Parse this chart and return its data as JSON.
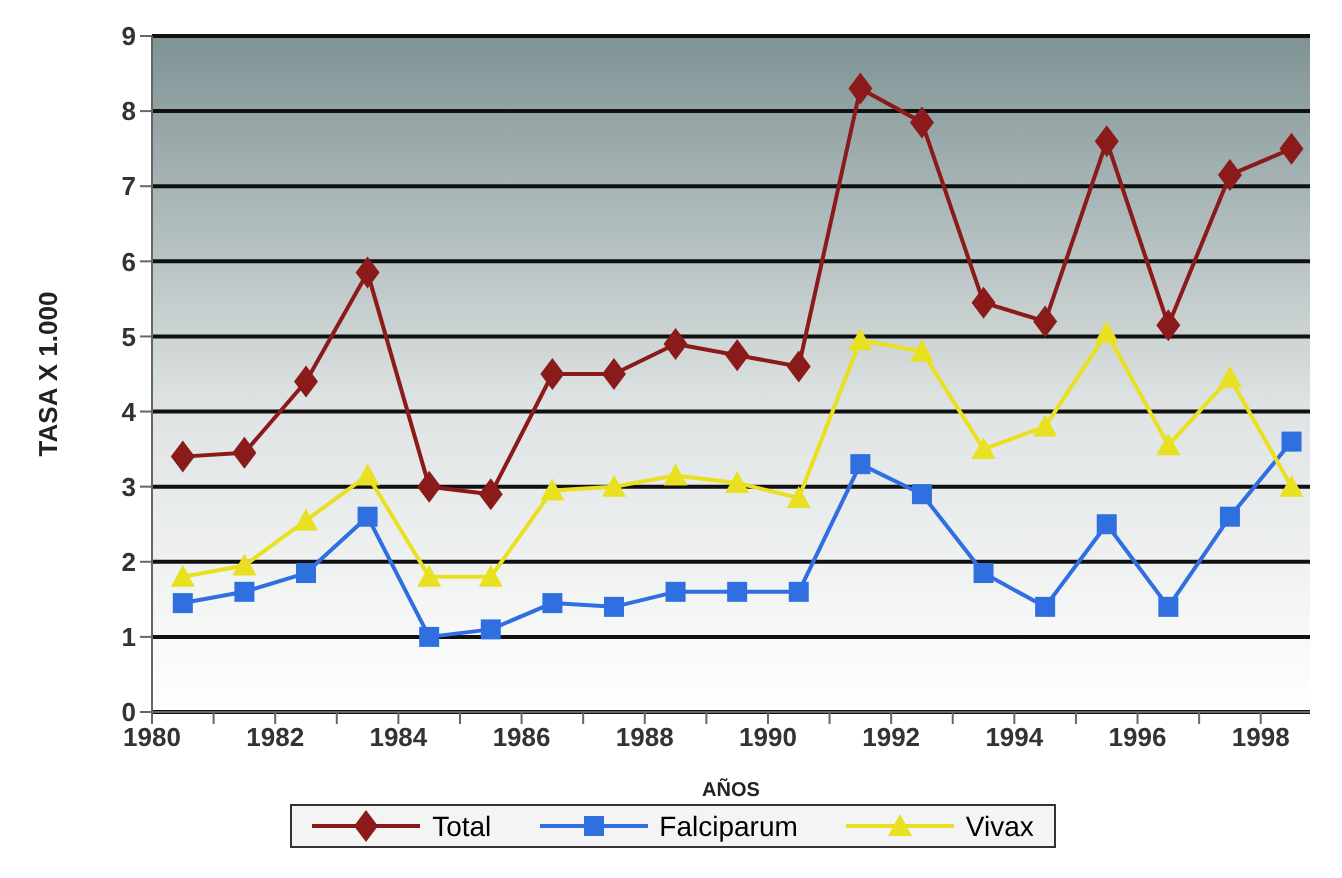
{
  "chart_data": {
    "type": "line",
    "xlabel": "AÑOS",
    "ylabel": "TASA X 1.000",
    "x": [
      1980.5,
      1981.5,
      1982.5,
      1983.5,
      1984.5,
      1985.5,
      1986.5,
      1987.5,
      1988.5,
      1989.5,
      1990.5,
      1991.5,
      1992.5,
      1993.5,
      1994.5,
      1995.5,
      1996.5,
      1997.5,
      1998.5
    ],
    "series": [
      {
        "name": "Total",
        "color": "#8b1a1a",
        "marker": "diamond",
        "values": [
          3.4,
          3.45,
          4.4,
          5.85,
          3.0,
          2.9,
          4.5,
          4.5,
          4.9,
          4.75,
          4.6,
          8.3,
          7.85,
          5.45,
          5.2,
          7.6,
          5.15,
          7.15,
          7.5
        ]
      },
      {
        "name": "Falciparum",
        "color": "#2f6fe0",
        "marker": "square",
        "values": [
          1.45,
          1.6,
          1.85,
          2.6,
          1.0,
          1.1,
          1.45,
          1.4,
          1.6,
          1.6,
          1.6,
          3.3,
          2.9,
          1.85,
          1.4,
          2.5,
          1.4,
          2.6,
          3.6
        ]
      },
      {
        "name": "Vivax",
        "color": "#e8e020",
        "marker": "triangle",
        "values": [
          1.8,
          1.95,
          2.55,
          3.15,
          1.8,
          1.8,
          2.95,
          3.0,
          3.15,
          3.05,
          2.85,
          4.95,
          4.8,
          3.5,
          3.8,
          5.05,
          3.55,
          4.45,
          3.0
        ]
      }
    ],
    "xlim": [
      1980,
      1998.8
    ],
    "xticks": [
      1980,
      {
        "value": 1981,
        "label": null
      },
      1982,
      {
        "value": 1983,
        "label": null
      },
      1984,
      {
        "value": 1985,
        "label": null
      },
      1986,
      {
        "value": 1987,
        "label": null
      },
      1988,
      {
        "value": 1989,
        "label": null
      },
      1990,
      {
        "value": 1991,
        "label": null
      },
      1992,
      {
        "value": 1993,
        "label": null
      },
      1994,
      {
        "value": 1995,
        "label": null
      },
      1996,
      {
        "value": 1997,
        "label": null
      },
      1998
    ],
    "ylim": [
      0,
      9
    ],
    "yticks": [
      0,
      1,
      2,
      3,
      4,
      5,
      6,
      7,
      8,
      9
    ],
    "grid": "y",
    "legend": "bottom"
  }
}
